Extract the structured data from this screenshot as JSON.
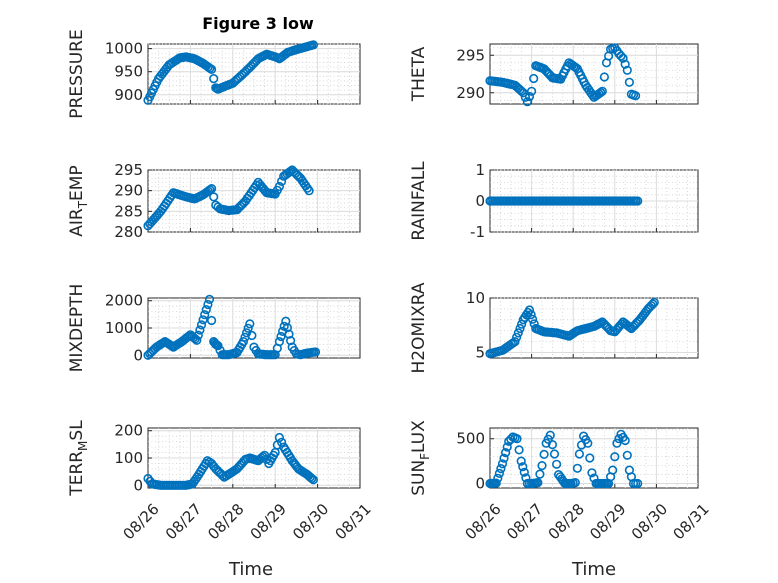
{
  "figure": {
    "title": "Figure 3 low",
    "xlabel": "Time",
    "marker_color": "#0072BD",
    "x_ticks": [
      "08/26",
      "08/27",
      "08/28",
      "08/29",
      "08/30",
      "08/31"
    ]
  },
  "chart_data": [
    {
      "type": "scatter",
      "title": "Figure 3 low",
      "ylabel": "PRESSURE",
      "xlabel": "",
      "xlim": [
        "08/26",
        "08/31"
      ],
      "ylim": [
        880,
        1010
      ],
      "yticks": [
        900,
        950,
        1000
      ],
      "ytick_labels": [
        "900",
        "950",
        "1000"
      ],
      "grid": true,
      "x": [
        0,
        0.25,
        0.5,
        0.75,
        0.9,
        1.1,
        1.3,
        1.5,
        1.6,
        1.65,
        1.8,
        2.0,
        2.3,
        2.6,
        2.8,
        3.0,
        3.1,
        3.3,
        3.5,
        3.7,
        3.9
      ],
      "y": [
        888,
        935,
        965,
        980,
        982,
        978,
        968,
        955,
        915,
        912,
        918,
        925,
        950,
        978,
        988,
        982,
        978,
        992,
        998,
        1003,
        1008
      ]
    },
    {
      "type": "scatter",
      "ylabel": "THETA",
      "xlabel": "",
      "xlim": [
        "08/26",
        "08/31"
      ],
      "ylim": [
        288.5,
        296.5
      ],
      "yticks": [
        290,
        295
      ],
      "ytick_labels": [
        "290",
        "295"
      ],
      "grid": true,
      "x": [
        0,
        0.3,
        0.6,
        0.8,
        0.9,
        1.0,
        1.1,
        1.3,
        1.5,
        1.7,
        1.9,
        2.1,
        2.3,
        2.5,
        2.7,
        2.8,
        2.9,
        3.0,
        3.1,
        3.2,
        3.3,
        3.4,
        3.5
      ],
      "y": [
        291.6,
        291.4,
        291.0,
        290.0,
        288.8,
        290.2,
        293.6,
        293.2,
        292.0,
        291.8,
        294.0,
        293.2,
        291.0,
        289.4,
        290.2,
        294.0,
        295.8,
        296.0,
        295.2,
        294.6,
        293.0,
        289.8,
        289.6
      ]
    },
    {
      "type": "scatter",
      "ylabel": "AIR_TEMP",
      "xlabel": "",
      "xlim": [
        "08/26",
        "08/31"
      ],
      "ylim": [
        280,
        295
      ],
      "yticks": [
        280,
        285,
        290,
        295
      ],
      "ytick_labels": [
        "280",
        "285",
        "290",
        "295"
      ],
      "grid": true,
      "x": [
        0,
        0.3,
        0.6,
        0.9,
        1.1,
        1.3,
        1.5,
        1.6,
        1.7,
        1.9,
        2.1,
        2.3,
        2.6,
        2.8,
        3.0,
        3.1,
        3.2,
        3.4,
        3.6,
        3.8
      ],
      "y": [
        281.5,
        285.0,
        289.5,
        288.5,
        288.0,
        289.0,
        290.5,
        286.5,
        285.6,
        285.2,
        285.4,
        287.5,
        292.0,
        289.5,
        289.2,
        291.0,
        293.5,
        295.0,
        293.0,
        290.0
      ]
    },
    {
      "type": "scatter",
      "ylabel": "RAINFALL",
      "xlabel": "",
      "xlim": [
        "08/26",
        "08/31"
      ],
      "ylim": [
        -1,
        1
      ],
      "yticks": [
        -1,
        0,
        1
      ],
      "ytick_labels": [
        "-1",
        "0",
        "1"
      ],
      "grid": true,
      "x": [
        0,
        3.55
      ],
      "y": [
        0,
        0
      ]
    },
    {
      "type": "scatter",
      "ylabel": "MIXDEPTH",
      "xlabel": "",
      "xlim": [
        "08/26",
        "08/31"
      ],
      "ylim": [
        -100,
        2100
      ],
      "yticks": [
        0,
        1000,
        2000
      ],
      "ytick_labels": [
        "0",
        "1000",
        "2000"
      ],
      "grid": true,
      "x": [
        0,
        0.2,
        0.4,
        0.6,
        0.8,
        1.0,
        1.15,
        1.3,
        1.45,
        1.55,
        1.6,
        1.65,
        1.75,
        1.9,
        2.1,
        2.25,
        2.4,
        2.5,
        2.6,
        2.8,
        3.0,
        3.1,
        3.25,
        3.4,
        3.5,
        3.6,
        3.75,
        3.95
      ],
      "y": [
        0,
        300,
        500,
        300,
        500,
        750,
        550,
        1300,
        2050,
        500,
        400,
        350,
        20,
        20,
        100,
        500,
        1150,
        300,
        50,
        20,
        20,
        500,
        1250,
        300,
        50,
        20,
        80,
        120
      ]
    },
    {
      "type": "scatter",
      "ylabel": "H2OMIXRA",
      "xlabel": "",
      "xlim": [
        "08/26",
        "08/31"
      ],
      "ylim": [
        4.5,
        10
      ],
      "yticks": [
        5,
        10
      ],
      "ytick_labels": [
        "5",
        "10"
      ],
      "grid": true,
      "x": [
        0,
        0.3,
        0.6,
        0.8,
        0.95,
        1.1,
        1.3,
        1.6,
        1.9,
        2.1,
        2.3,
        2.5,
        2.7,
        2.9,
        3.0,
        3.2,
        3.4,
        3.6,
        3.8,
        3.95
      ],
      "y": [
        4.9,
        5.2,
        6.0,
        8.0,
        8.9,
        7.2,
        6.9,
        6.8,
        6.5,
        7.0,
        7.2,
        7.4,
        7.8,
        7.0,
        6.9,
        7.8,
        7.2,
        8.0,
        9.0,
        9.6
      ]
    },
    {
      "type": "scatter",
      "ylabel": "TERR_MSL",
      "xlabel": "",
      "xlim": [
        "08/26",
        "08/31"
      ],
      "ylim": [
        -10,
        210
      ],
      "yticks": [
        0,
        100,
        200
      ],
      "ytick_labels": [
        "0",
        "100",
        "200"
      ],
      "grid": true,
      "x": [
        0,
        0.1,
        0.3,
        0.6,
        0.9,
        1.05,
        1.2,
        1.4,
        1.5,
        1.6,
        1.8,
        1.9,
        2.1,
        2.3,
        2.4,
        2.6,
        2.75,
        2.85,
        3.0,
        3.1,
        3.2,
        3.4,
        3.55,
        3.75,
        3.9
      ],
      "y": [
        25,
        5,
        0,
        0,
        0,
        5,
        40,
        90,
        80,
        60,
        30,
        40,
        60,
        95,
        100,
        90,
        110,
        80,
        120,
        175,
        140,
        90,
        60,
        40,
        20
      ]
    },
    {
      "type": "scatter",
      "ylabel": "SUN_FLUX",
      "xlabel": "",
      "xlim": [
        "08/26",
        "08/31"
      ],
      "ylim": [
        -50,
        620
      ],
      "yticks": [
        0,
        500
      ],
      "ytick_labels": [
        "0",
        "500"
      ],
      "grid": true,
      "x": [
        0,
        0.15,
        0.3,
        0.45,
        0.55,
        0.65,
        0.75,
        0.9,
        1.0,
        1.15,
        1.25,
        1.35,
        1.45,
        1.55,
        1.65,
        1.8,
        1.95,
        2.05,
        2.15,
        2.25,
        2.35,
        2.45,
        2.55,
        2.7,
        2.85,
        2.95,
        3.05,
        3.15,
        3.25,
        3.35,
        3.45,
        3.55
      ],
      "y": [
        0,
        5,
        220,
        470,
        520,
        500,
        250,
        0,
        0,
        10,
        200,
        450,
        540,
        330,
        100,
        0,
        0,
        10,
        330,
        530,
        450,
        120,
        0,
        0,
        0,
        150,
        450,
        550,
        480,
        150,
        0,
        0
      ]
    }
  ]
}
